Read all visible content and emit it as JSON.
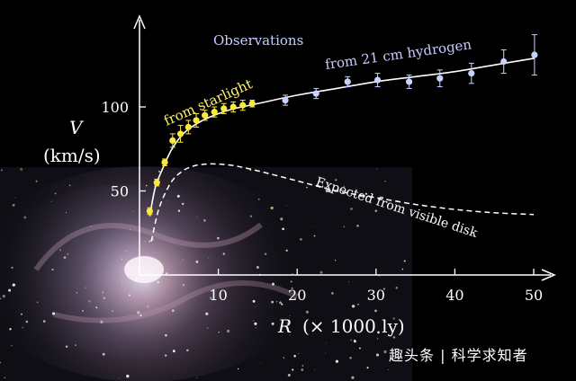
{
  "chart_data": {
    "type": "scatter",
    "title": "Observations",
    "xlabel_var": "R",
    "xlabel_unit": "(× 1000 ly)",
    "ylabel_var": "V",
    "ylabel_unit": "(km/s)",
    "xlim": [
      0,
      52
    ],
    "ylim": [
      0,
      150
    ],
    "x_ticks": [
      10,
      20,
      30,
      40,
      50
    ],
    "y_ticks": [
      50,
      100
    ],
    "series": [
      {
        "name": "from starlight",
        "color": "#f7ea3a",
        "x": [
          1.3,
          2.2,
          3.2,
          4.2,
          5.2,
          6.2,
          7.2,
          8.3,
          9.5,
          10.7,
          11.9,
          13.1,
          14.3
        ],
        "y": [
          38,
          55,
          67,
          80,
          84,
          88,
          92,
          95,
          97,
          99,
          100,
          101,
          102
        ],
        "err": [
          2,
          2,
          2,
          4,
          5,
          4,
          4,
          3,
          3,
          3,
          3,
          3,
          2
        ]
      },
      {
        "name": "from 21 cm hydrogen",
        "color": "#c8d2ff",
        "x": [
          18.5,
          22.4,
          26.4,
          30.2,
          34.2,
          38.1,
          42.1,
          46.2,
          50.1
        ],
        "y": [
          104,
          108,
          115,
          116,
          115,
          117,
          120,
          127,
          131
        ],
        "err": [
          3,
          3,
          3,
          4,
          4,
          5,
          6,
          7,
          12
        ]
      }
    ],
    "fit_curve": {
      "x": [
        1.3,
        2,
        3,
        4,
        5,
        6,
        8,
        10,
        12,
        14,
        16,
        20,
        25,
        30,
        35,
        40,
        45,
        50.1
      ],
      "y": [
        35,
        52,
        64,
        74,
        81,
        86,
        92,
        96,
        99,
        101,
        103,
        107,
        111,
        115,
        118,
        121,
        125,
        129
      ]
    },
    "expected_curve": {
      "name": "Expected from visible disk",
      "x": [
        1.5,
        2.5,
        4,
        5.5,
        7,
        8.5,
        10,
        12,
        15,
        20,
        25,
        30,
        35,
        40,
        45,
        50
      ],
      "y": [
        20,
        40,
        55,
        62,
        65,
        66,
        66,
        65,
        62,
        56,
        50,
        46,
        42,
        39,
        37,
        36
      ]
    }
  },
  "annotations": {
    "starlight": "from  starlight",
    "hydrogen": "from 21 cm hydrogen",
    "expected": "Expected from visible disk"
  },
  "watermark": "趣头条 | 科学求知者"
}
